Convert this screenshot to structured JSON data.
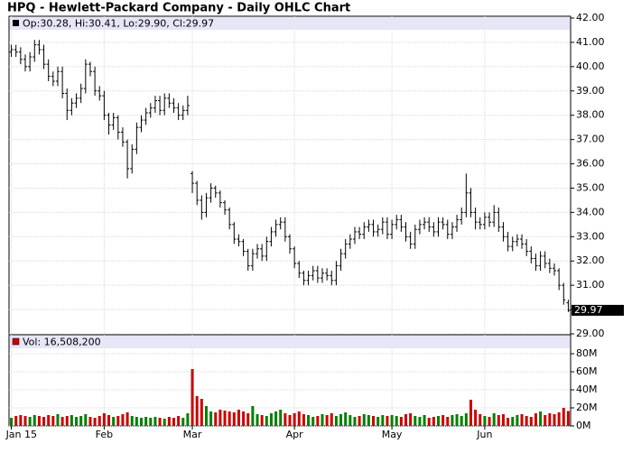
{
  "chart_data": [
    {
      "type": "ohlc",
      "title": "HPQ - Hewlett-Packard Company - Daily OHLC Chart",
      "series": [
        {
          "name": "Op:30.28, Hi:30.41, Lo:29.90, Cl:29.97",
          "color": "#000000",
          "values": [
            [
              40.6,
              40.9,
              40.4,
              40.7
            ],
            [
              40.7,
              40.9,
              40.4,
              40.6
            ],
            [
              40.6,
              40.8,
              40.1,
              40.3
            ],
            [
              40.3,
              40.5,
              39.8,
              40.0
            ],
            [
              40.0,
              40.6,
              39.8,
              40.4
            ],
            [
              40.4,
              41.1,
              40.2,
              40.9
            ],
            [
              40.9,
              41.1,
              40.5,
              40.7
            ],
            [
              40.7,
              40.9,
              39.9,
              40.1
            ],
            [
              40.1,
              40.3,
              39.4,
              39.6
            ],
            [
              39.6,
              39.8,
              39.2,
              39.4
            ],
            [
              39.4,
              40.0,
              39.2,
              39.8
            ],
            [
              39.8,
              40.0,
              38.7,
              38.9
            ],
            [
              38.9,
              39.1,
              37.8,
              38.2
            ],
            [
              38.2,
              38.7,
              38.0,
              38.5
            ],
            [
              38.5,
              38.9,
              38.3,
              38.7
            ],
            [
              38.7,
              39.3,
              38.5,
              39.1
            ],
            [
              39.1,
              40.3,
              38.9,
              40.1
            ],
            [
              40.1,
              40.2,
              39.6,
              39.8
            ],
            [
              39.8,
              40.0,
              38.8,
              39.0
            ],
            [
              39.0,
              39.2,
              38.6,
              38.8
            ],
            [
              38.8,
              39.0,
              37.8,
              38.0
            ],
            [
              38.0,
              38.1,
              37.2,
              37.6
            ],
            [
              37.6,
              38.1,
              37.4,
              37.9
            ],
            [
              37.9,
              38.0,
              37.0,
              37.3
            ],
            [
              37.3,
              37.5,
              36.7,
              36.9
            ],
            [
              36.9,
              37.0,
              35.4,
              35.8
            ],
            [
              35.8,
              36.8,
              35.6,
              36.6
            ],
            [
              36.6,
              37.7,
              36.4,
              37.5
            ],
            [
              37.5,
              38.0,
              37.3,
              37.8
            ],
            [
              37.8,
              38.3,
              37.6,
              38.1
            ],
            [
              38.1,
              38.5,
              37.9,
              38.3
            ],
            [
              38.3,
              38.8,
              38.1,
              38.6
            ],
            [
              38.6,
              38.8,
              38.0,
              38.2
            ],
            [
              38.2,
              38.9,
              38.0,
              38.7
            ],
            [
              38.7,
              38.9,
              38.3,
              38.5
            ],
            [
              38.5,
              38.7,
              38.1,
              38.3
            ],
            [
              38.3,
              38.5,
              37.8,
              38.0
            ],
            [
              38.0,
              38.4,
              37.8,
              38.2
            ],
            [
              38.2,
              38.8,
              38.0,
              38.4
            ],
            [
              35.6,
              35.7,
              34.8,
              35.2
            ],
            [
              35.2,
              35.3,
              34.3,
              34.5
            ],
            [
              34.5,
              34.7,
              33.7,
              34.0
            ],
            [
              34.0,
              34.8,
              33.8,
              34.6
            ],
            [
              34.6,
              35.2,
              34.4,
              35.0
            ],
            [
              35.0,
              35.1,
              34.6,
              34.8
            ],
            [
              34.8,
              34.9,
              34.2,
              34.4
            ],
            [
              34.4,
              34.5,
              33.9,
              34.1
            ],
            [
              34.1,
              34.2,
              33.3,
              33.5
            ],
            [
              33.5,
              33.6,
              32.7,
              32.9
            ],
            [
              32.9,
              33.1,
              32.6,
              32.8
            ],
            [
              32.8,
              32.9,
              32.2,
              32.4
            ],
            [
              32.4,
              32.5,
              31.6,
              31.8
            ],
            [
              31.8,
              32.5,
              31.6,
              32.3
            ],
            [
              32.3,
              32.7,
              32.1,
              32.5
            ],
            [
              32.5,
              32.7,
              32.0,
              32.2
            ],
            [
              32.2,
              33.0,
              32.0,
              32.8
            ],
            [
              32.8,
              33.4,
              32.6,
              33.2
            ],
            [
              33.2,
              33.7,
              33.0,
              33.5
            ],
            [
              33.5,
              33.8,
              33.3,
              33.6
            ],
            [
              33.6,
              33.8,
              32.8,
              33.0
            ],
            [
              33.0,
              33.1,
              32.3,
              32.5
            ],
            [
              32.5,
              32.6,
              31.7,
              31.9
            ],
            [
              31.9,
              32.0,
              31.3,
              31.5
            ],
            [
              31.5,
              31.6,
              31.0,
              31.2
            ],
            [
              31.2,
              31.6,
              31.0,
              31.4
            ],
            [
              31.4,
              31.8,
              31.2,
              31.6
            ],
            [
              31.6,
              31.8,
              31.1,
              31.3
            ],
            [
              31.3,
              31.7,
              31.1,
              31.5
            ],
            [
              31.5,
              31.7,
              31.2,
              31.4
            ],
            [
              31.4,
              31.6,
              31.0,
              31.2
            ],
            [
              31.2,
              32.0,
              31.0,
              31.8
            ],
            [
              31.8,
              32.5,
              31.6,
              32.3
            ],
            [
              32.3,
              32.9,
              32.1,
              32.7
            ],
            [
              32.7,
              33.1,
              32.5,
              32.9
            ],
            [
              32.9,
              33.4,
              32.7,
              33.2
            ],
            [
              33.2,
              33.4,
              32.9,
              33.1
            ],
            [
              33.1,
              33.6,
              32.9,
              33.4
            ],
            [
              33.4,
              33.7,
              33.2,
              33.5
            ],
            [
              33.5,
              33.7,
              33.0,
              33.2
            ],
            [
              33.2,
              33.5,
              33.0,
              33.3
            ],
            [
              33.3,
              33.8,
              33.1,
              33.6
            ],
            [
              33.6,
              33.8,
              32.9,
              33.1
            ],
            [
              33.1,
              33.7,
              32.9,
              33.5
            ],
            [
              33.5,
              33.9,
              33.3,
              33.7
            ],
            [
              33.7,
              33.9,
              33.2,
              33.4
            ],
            [
              33.4,
              33.6,
              32.8,
              33.0
            ],
            [
              33.0,
              33.2,
              32.5,
              32.7
            ],
            [
              32.7,
              33.5,
              32.5,
              33.3
            ],
            [
              33.3,
              33.7,
              33.1,
              33.5
            ],
            [
              33.5,
              33.8,
              33.3,
              33.6
            ],
            [
              33.6,
              33.8,
              33.2,
              33.4
            ],
            [
              33.4,
              33.6,
              33.0,
              33.2
            ],
            [
              33.2,
              33.8,
              33.0,
              33.6
            ],
            [
              33.6,
              33.8,
              33.3,
              33.5
            ],
            [
              33.5,
              33.7,
              32.9,
              33.1
            ],
            [
              33.1,
              33.6,
              32.9,
              33.4
            ],
            [
              33.4,
              33.9,
              33.2,
              33.7
            ],
            [
              33.7,
              34.2,
              33.5,
              34.0
            ],
            [
              34.0,
              35.6,
              33.8,
              34.8
            ],
            [
              34.8,
              35.0,
              33.8,
              34.0
            ],
            [
              34.0,
              34.2,
              33.3,
              33.6
            ],
            [
              33.6,
              33.8,
              33.3,
              33.5
            ],
            [
              33.5,
              34.0,
              33.3,
              33.8
            ],
            [
              33.8,
              34.0,
              33.4,
              33.6
            ],
            [
              33.6,
              34.3,
              33.4,
              34.0
            ],
            [
              34.0,
              34.2,
              33.2,
              33.4
            ],
            [
              33.4,
              33.6,
              32.8,
              33.0
            ],
            [
              33.0,
              33.2,
              32.4,
              32.6
            ],
            [
              32.6,
              33.0,
              32.4,
              32.8
            ],
            [
              32.8,
              33.1,
              32.6,
              32.9
            ],
            [
              32.9,
              33.1,
              32.5,
              32.7
            ],
            [
              32.7,
              32.9,
              32.2,
              32.4
            ],
            [
              32.4,
              32.6,
              31.9,
              32.1
            ],
            [
              32.1,
              32.3,
              31.6,
              31.8
            ],
            [
              31.8,
              32.4,
              31.6,
              32.2
            ],
            [
              32.2,
              32.4,
              31.7,
              31.9
            ],
            [
              31.9,
              32.1,
              31.5,
              31.7
            ],
            [
              31.7,
              31.9,
              31.4,
              31.6
            ],
            [
              31.6,
              31.7,
              30.8,
              31.0
            ],
            [
              31.0,
              31.1,
              30.2,
              30.4
            ],
            [
              30.28,
              30.41,
              29.9,
              29.97
            ]
          ]
        }
      ],
      "last_label": "29.97",
      "xlim": [
        -0.5,
        120.5
      ],
      "xticks": [
        {
          "value": 0,
          "label": "Jan 15"
        },
        {
          "value": 20,
          "label": "Feb"
        },
        {
          "value": 39,
          "label": "Mar"
        },
        {
          "value": 61,
          "label": "Apr"
        },
        {
          "value": 82,
          "label": "May"
        },
        {
          "value": 102,
          "label": "Jun"
        }
      ],
      "ylim": [
        29,
        42
      ],
      "yticks": [
        {
          "value": 29,
          "label": "29.00"
        },
        {
          "value": 30,
          "label": "30.00"
        },
        {
          "value": 31,
          "label": "31.00"
        },
        {
          "value": 32,
          "label": "32.00"
        },
        {
          "value": 33,
          "label": "33.00"
        },
        {
          "value": 34,
          "label": "34.00"
        },
        {
          "value": 35,
          "label": "35.00"
        },
        {
          "value": 36,
          "label": "36.00"
        },
        {
          "value": 37,
          "label": "37.00"
        },
        {
          "value": 38,
          "label": "38.00"
        },
        {
          "value": 39,
          "label": "39.00"
        },
        {
          "value": 40,
          "label": "40.00"
        },
        {
          "value": 41,
          "label": "41.00"
        },
        {
          "value": 42,
          "label": "42.00"
        }
      ],
      "grid": true
    },
    {
      "type": "bar",
      "series": [
        {
          "name": "Vol: 16,508,200",
          "up_color": "#008000",
          "down_color": "#cc0000",
          "values": [
            9,
            11,
            12,
            11,
            10,
            12,
            11,
            10,
            12,
            11,
            13,
            10,
            11,
            12,
            10,
            11,
            13,
            10,
            9,
            11,
            14,
            12,
            10,
            11,
            13,
            15,
            11,
            10,
            9,
            10,
            9,
            10,
            9,
            8,
            10,
            9,
            11,
            9,
            14,
            63,
            33,
            30,
            22,
            16,
            15,
            18,
            17,
            16,
            15,
            18,
            16,
            14,
            22,
            13,
            12,
            11,
            14,
            16,
            18,
            14,
            12,
            14,
            16,
            13,
            12,
            10,
            11,
            13,
            12,
            14,
            11,
            13,
            15,
            12,
            10,
            11,
            13,
            12,
            11,
            10,
            12,
            11,
            12,
            11,
            10,
            13,
            14,
            11,
            10,
            12,
            9,
            10,
            11,
            12,
            10,
            12,
            13,
            11,
            14,
            29,
            18,
            13,
            11,
            10,
            14,
            12,
            13,
            9,
            10,
            12,
            13,
            11,
            10,
            14,
            16,
            12,
            14,
            13,
            15,
            20,
            16.5082
          ]
        }
      ],
      "ylim": [
        0,
        100
      ],
      "yticks": [
        {
          "value": 0,
          "label": "0M"
        },
        {
          "value": 20,
          "label": "20M"
        },
        {
          "value": 40,
          "label": "40M"
        },
        {
          "value": 60,
          "label": "60M"
        },
        {
          "value": 80,
          "label": "80M"
        }
      ],
      "grid": true
    }
  ]
}
